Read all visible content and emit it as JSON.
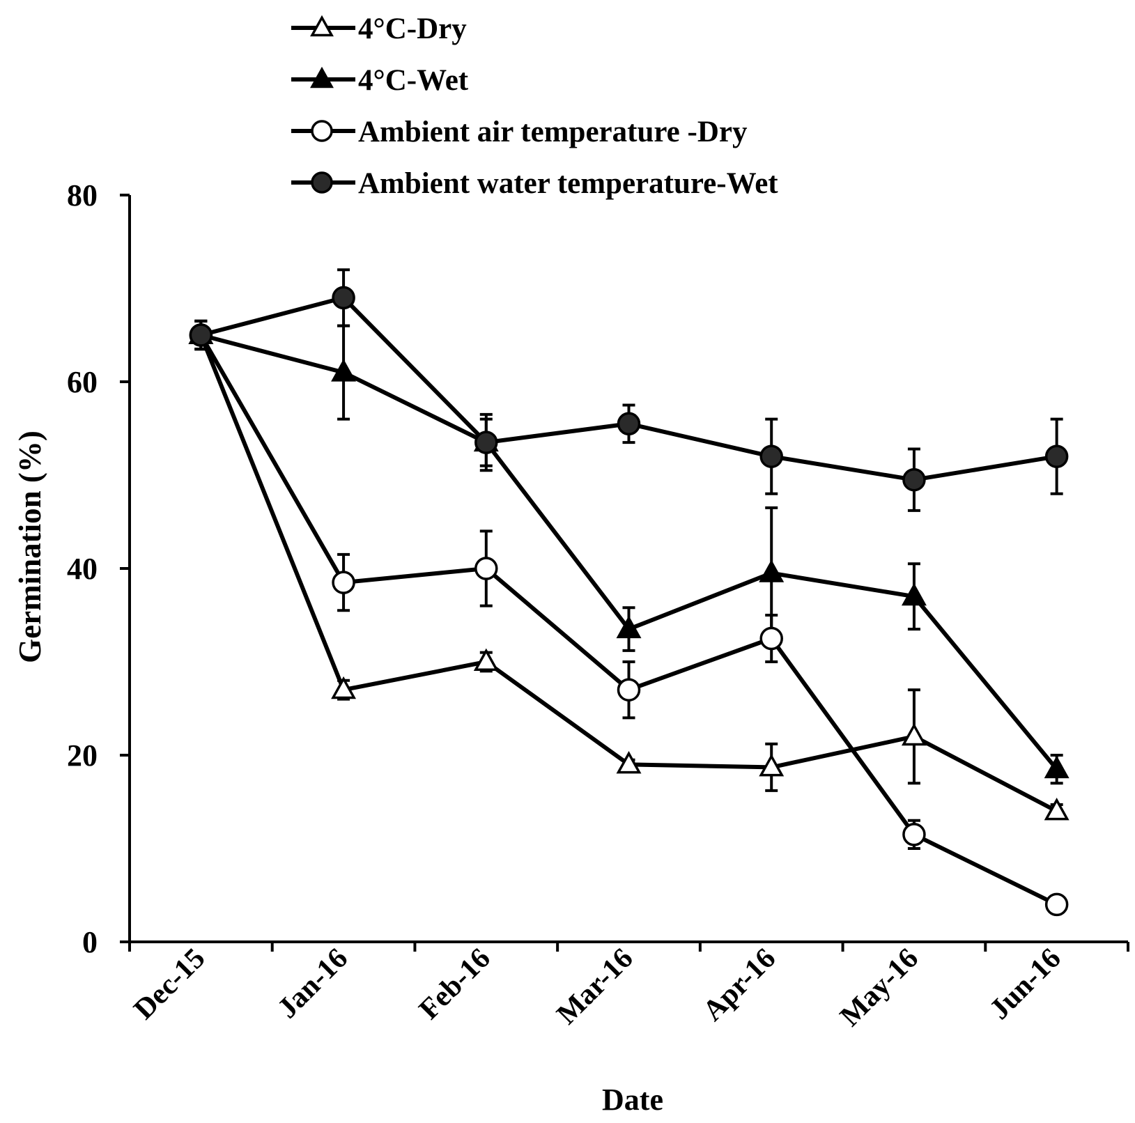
{
  "chart_data": {
    "type": "line",
    "title": "",
    "xlabel": "Date",
    "ylabel": "Germination (%)",
    "categories": [
      "Dec-15",
      "Jan-16",
      "Feb-16",
      "Mar-16",
      "Apr-16",
      "May-16",
      "Jun-16"
    ],
    "ylim": [
      0,
      80
    ],
    "yticks": [
      "0",
      "20",
      "40",
      "60",
      "80"
    ],
    "grid": false,
    "legend_position": "top",
    "series": [
      {
        "name": "4°C-Dry",
        "marker": "triangle-open",
        "values": [
          65,
          27,
          30,
          19,
          18.7,
          22,
          14
        ],
        "errors": [
          1.5,
          1,
          1,
          0.5,
          2.5,
          5,
          0.7
        ]
      },
      {
        "name": "4°C-Wet",
        "marker": "triangle-filled",
        "values": [
          65,
          61,
          53.5,
          33.5,
          39.5,
          37,
          18.5
        ],
        "errors": [
          1.5,
          5,
          2.5,
          2.3,
          7,
          3.5,
          1.5
        ]
      },
      {
        "name": "Ambient air temperature -Dry",
        "marker": "circle-open",
        "values": [
          65,
          38.5,
          40,
          27,
          32.5,
          11.5,
          4
        ],
        "errors": [
          1.5,
          3,
          4,
          3,
          2.5,
          1.5,
          0
        ]
      },
      {
        "name": "Ambient water temperature-Wet",
        "marker": "circle-filled",
        "values": [
          65,
          69,
          53.5,
          55.5,
          52,
          49.5,
          52
        ],
        "errors": [
          1.5,
          3,
          3,
          2,
          4,
          3.3,
          4
        ]
      }
    ]
  }
}
